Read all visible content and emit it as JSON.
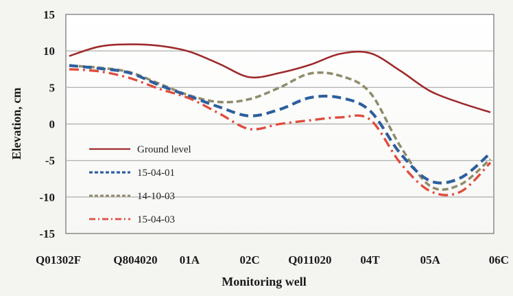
{
  "chart_data": {
    "type": "line",
    "xlabel": "Monitoring well",
    "ylabel": "Elevation, cm",
    "categories": [
      "Q01302F",
      "Q804020",
      "01A",
      "02C",
      "Q011020",
      "04T",
      "05A",
      "06C"
    ],
    "ylim": [
      -15,
      15
    ],
    "yticks": [
      15,
      10,
      5,
      0,
      -5,
      -10,
      -15
    ],
    "grid": "horizontal",
    "legend_position": "lower-left",
    "series": [
      {
        "name": "Ground level",
        "color": "#9e2a2b",
        "dash": "solid",
        "x": [
          0,
          0.5,
          1,
          1.5,
          2,
          2.5,
          3,
          3.5,
          4,
          4.5,
          5,
          5.5,
          6,
          6.5,
          7
        ],
        "values": [
          9.3,
          10.6,
          10.9,
          10.7,
          9.9,
          8.2,
          6.4,
          7.0,
          8.1,
          9.6,
          9.7,
          7.3,
          4.5,
          2.9,
          1.6
        ]
      },
      {
        "name": "15-04-01",
        "color": "#2e5f9e",
        "dash": "dash",
        "x": [
          0,
          0.5,
          1,
          1.5,
          2,
          2.5,
          3,
          3.5,
          4,
          4.5,
          5,
          5.5,
          6,
          6.5,
          7
        ],
        "values": [
          8.0,
          7.6,
          7.0,
          5.3,
          3.8,
          2.3,
          1.1,
          2.0,
          3.6,
          3.6,
          1.8,
          -4.0,
          -7.8,
          -7.4,
          -4.0
        ]
      },
      {
        "name": "14-10-03",
        "color": "#8f8c6c",
        "dash": "dash",
        "x": [
          0,
          0.5,
          1,
          1.5,
          2,
          2.5,
          3,
          3.5,
          4,
          4.5,
          5,
          5.5,
          6,
          6.5,
          7
        ],
        "values": [
          8.0,
          7.7,
          7.1,
          5.5,
          3.9,
          3.0,
          3.4,
          5.0,
          6.9,
          6.6,
          4.3,
          -3.0,
          -8.5,
          -8.3,
          -4.8
        ]
      },
      {
        "name": "15-04-03",
        "color": "#e04c3c",
        "dash": "dashdot",
        "x": [
          0,
          0.5,
          1,
          1.5,
          2,
          2.5,
          3,
          3.5,
          4,
          4.5,
          5,
          5.5,
          6,
          6.5,
          7
        ],
        "values": [
          7.5,
          7.2,
          6.3,
          4.8,
          3.5,
          1.4,
          -0.7,
          0.0,
          0.5,
          0.9,
          0.6,
          -5.3,
          -9.2,
          -9.3,
          -5.3
        ]
      }
    ]
  }
}
